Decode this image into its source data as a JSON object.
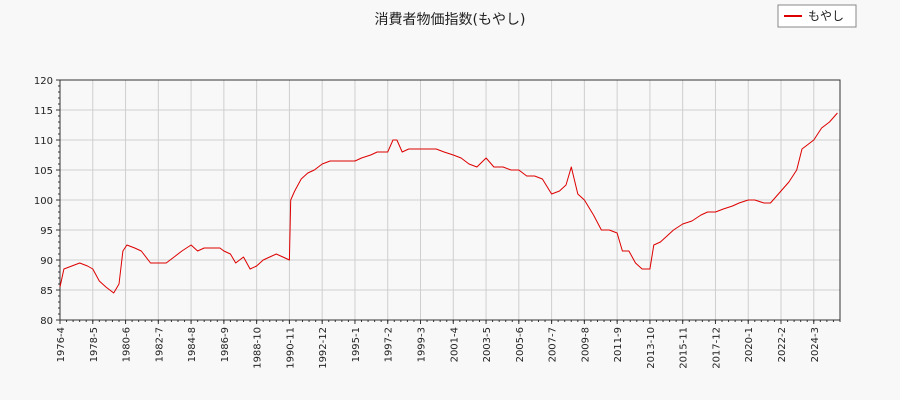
{
  "chart_data": {
    "type": "line",
    "title": "消費者物価指数(もやし)",
    "xlabel": "",
    "ylabel": "",
    "ylim": [
      80,
      120
    ],
    "xlim": [
      "1976-4",
      "2025-11"
    ],
    "yticks": [
      80,
      85,
      90,
      95,
      100,
      105,
      110,
      115,
      120
    ],
    "xticks": [
      "1976-4",
      "1978-5",
      "1980-6",
      "1982-7",
      "1984-8",
      "1986-9",
      "1988-10",
      "1990-11",
      "1992-12",
      "1995-1",
      "1997-2",
      "1999-3",
      "2001-4",
      "2003-5",
      "2005-6",
      "2007-7",
      "2009-8",
      "2011-9",
      "2013-10",
      "2015-11",
      "2017-12",
      "2020-1",
      "2022-2",
      "2024-3"
    ],
    "grid": true,
    "legend_position": "top-right",
    "series": [
      {
        "name": "もやし",
        "color": "#dd0000",
        "x": [
          "1976-4",
          "1976-7",
          "1977-1",
          "1977-7",
          "1978-1",
          "1978-5",
          "1978-10",
          "1979-3",
          "1979-9",
          "1980-1",
          "1980-4",
          "1980-7",
          "1981-1",
          "1981-6",
          "1982-1",
          "1982-7",
          "1983-1",
          "1983-7",
          "1984-1",
          "1984-8",
          "1985-1",
          "1985-6",
          "1986-1",
          "1986-6",
          "1986-9",
          "1987-2",
          "1987-6",
          "1987-12",
          "1988-5",
          "1988-10",
          "1989-3",
          "1989-8",
          "1990-1",
          "1990-6",
          "1990-11",
          "1990-12",
          "1991-3",
          "1991-8",
          "1992-1",
          "1992-6",
          "1992-12",
          "1993-6",
          "1994-1",
          "1994-6",
          "1995-1",
          "1995-6",
          "1996-1",
          "1996-6",
          "1997-2",
          "1997-6",
          "1997-9",
          "1998-1",
          "1998-6",
          "1999-3",
          "1999-9",
          "2000-3",
          "2000-9",
          "2001-4",
          "2001-10",
          "2002-4",
          "2002-10",
          "2003-5",
          "2003-11",
          "2004-6",
          "2004-12",
          "2005-6",
          "2005-12",
          "2006-6",
          "2006-12",
          "2007-7",
          "2008-1",
          "2008-6",
          "2008-10",
          "2009-3",
          "2009-8",
          "2010-3",
          "2010-9",
          "2011-3",
          "2011-9",
          "2012-1",
          "2012-6",
          "2012-11",
          "2013-4",
          "2013-10",
          "2014-1",
          "2014-6",
          "2014-11",
          "2015-4",
          "2015-11",
          "2016-6",
          "2017-1",
          "2017-6",
          "2017-12",
          "2018-6",
          "2019-1",
          "2019-6",
          "2020-1",
          "2020-6",
          "2021-1",
          "2021-6",
          "2022-2",
          "2022-8",
          "2023-2",
          "2023-6",
          "2024-3",
          "2024-9",
          "2025-3",
          "2025-9"
        ],
        "values": [
          85.5,
          88.5,
          89.0,
          89.5,
          89.0,
          88.5,
          86.5,
          85.5,
          84.5,
          86.0,
          91.5,
          92.5,
          92.0,
          91.5,
          89.5,
          89.5,
          89.5,
          90.5,
          91.5,
          92.5,
          91.5,
          92.0,
          92.0,
          92.0,
          91.5,
          91.0,
          89.5,
          90.5,
          88.5,
          89.0,
          90.0,
          90.5,
          91.0,
          90.5,
          90.0,
          100.0,
          101.5,
          103.5,
          104.5,
          105.0,
          106.0,
          106.5,
          106.5,
          106.5,
          106.5,
          107.0,
          107.5,
          108.0,
          108.0,
          110.0,
          110.0,
          108.0,
          108.5,
          108.5,
          108.5,
          108.5,
          108.0,
          107.5,
          107.0,
          106.0,
          105.5,
          107.0,
          105.5,
          105.5,
          105.0,
          105.0,
          104.0,
          104.0,
          103.5,
          101.0,
          101.5,
          102.5,
          105.5,
          101.0,
          100.0,
          97.5,
          95.0,
          95.0,
          94.5,
          91.5,
          91.5,
          89.5,
          88.5,
          88.5,
          92.5,
          93.0,
          94.0,
          95.0,
          96.0,
          96.5,
          97.5,
          98.0,
          98.0,
          98.5,
          99.0,
          99.5,
          100.0,
          100.0,
          99.5,
          99.5,
          101.5,
          103.0,
          105.0,
          108.5,
          110.0,
          112.0,
          113.0,
          114.5
        ]
      }
    ]
  }
}
